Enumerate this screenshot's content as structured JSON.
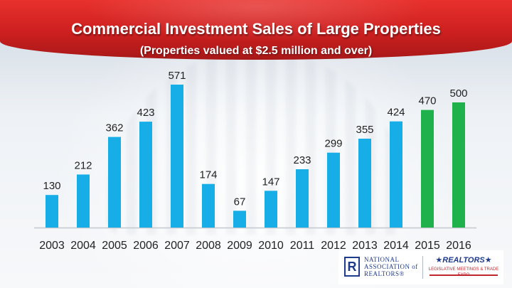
{
  "title": "Commercial Investment Sales of Large Properties",
  "subtitle": "(Properties valued at $2.5 million and over)",
  "chart_data": {
    "type": "bar",
    "title": "Commercial Investment Sales of Large Properties",
    "subtitle": "(Properties valued at $2.5 million and over)",
    "xlabel": "",
    "ylabel": "",
    "ylim": [
      0,
      571
    ],
    "grid": false,
    "legend": "none",
    "categories": [
      "2003",
      "2004",
      "2005",
      "2006",
      "2007",
      "2008",
      "2009",
      "2010",
      "2011",
      "2012",
      "2013",
      "2014",
      "2015",
      "2016"
    ],
    "values": [
      130,
      212,
      362,
      423,
      571,
      174,
      67,
      147,
      233,
      299,
      355,
      424,
      470,
      500
    ],
    "colors": {
      "actual": "#17aee8",
      "forecast": "#1fb14c",
      "axis": "#c3c8cf",
      "label": "#222222"
    },
    "forecast_categories": [
      "2015",
      "2016"
    ]
  },
  "logo": {
    "org_mark": "R",
    "org_text": [
      "NATIONAL",
      "ASSOCIATION of",
      "REALTORS®"
    ],
    "realtors_text": "★REALTORS★",
    "realtors_sub": "LEGISLATIVE MEETINGS & TRADE EXPO"
  }
}
